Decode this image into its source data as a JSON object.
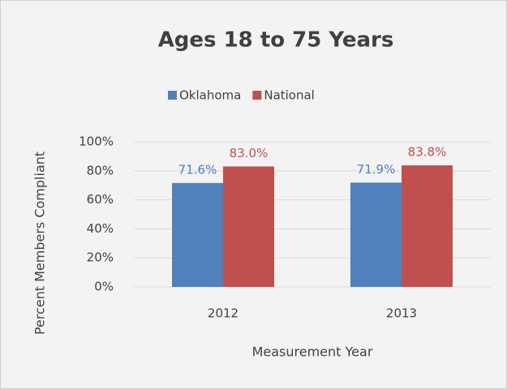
{
  "chart_data": {
    "type": "bar",
    "title": "Ages 18 to 75 Years",
    "categories": [
      "2012",
      "2013"
    ],
    "series": [
      {
        "name": "Oklahoma",
        "color": "#4f81bd",
        "values": [
          71.6,
          71.9
        ],
        "value_labels": [
          "71.6%",
          "71.9%"
        ]
      },
      {
        "name": "National",
        "color": "#c0504d",
        "values": [
          83.0,
          83.8
        ],
        "value_labels": [
          "83.0%",
          "83.8%"
        ]
      }
    ],
    "ylim": [
      0,
      100
    ],
    "yticks": [
      {
        "value": 0,
        "label": "0%"
      },
      {
        "value": 20,
        "label": "20%"
      },
      {
        "value": 40,
        "label": "40%"
      },
      {
        "value": 60,
        "label": "60%"
      },
      {
        "value": 80,
        "label": "80%"
      },
      {
        "value": 100,
        "label": "100%"
      }
    ],
    "ylabel": "Percent Members Compliant",
    "xlabel": "Measurement Year",
    "grid": true,
    "legend": "top"
  }
}
